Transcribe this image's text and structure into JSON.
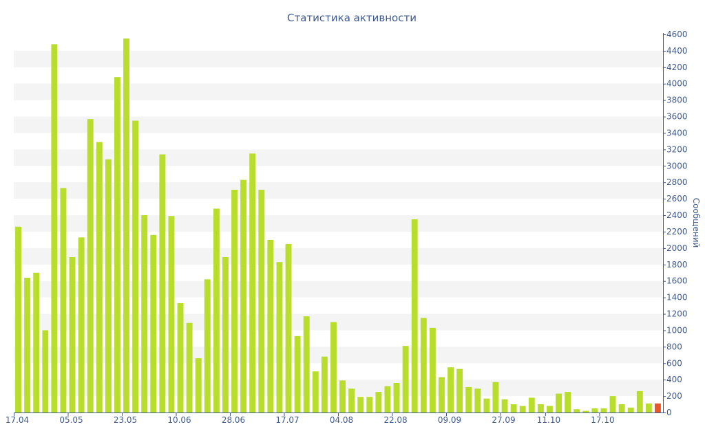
{
  "chart_data": {
    "type": "bar",
    "title": "Статистика активности",
    "xlabel": "",
    "ylabel": "Сообщений",
    "ylim": [
      0,
      4600
    ],
    "yticks": [
      0,
      200,
      400,
      600,
      800,
      1000,
      1200,
      1400,
      1600,
      1800,
      2000,
      2200,
      2400,
      2600,
      2800,
      3000,
      3200,
      3400,
      3600,
      3800,
      4000,
      4200,
      4400,
      4600
    ],
    "x_tick_labels": [
      {
        "label": "17.04",
        "index": 0
      },
      {
        "label": "05.05",
        "index": 6
      },
      {
        "label": "23.05",
        "index": 12
      },
      {
        "label": "10.06",
        "index": 18
      },
      {
        "label": "28.06",
        "index": 24
      },
      {
        "label": "17.07",
        "index": 30
      },
      {
        "label": "04.08",
        "index": 36
      },
      {
        "label": "22.08",
        "index": 42
      },
      {
        "label": "09.09",
        "index": 48
      },
      {
        "label": "27.09",
        "index": 54
      },
      {
        "label": "11.10",
        "index": 59
      },
      {
        "label": "17.10",
        "index": 65
      }
    ],
    "grid": true,
    "colors": {
      "bar": "#b9dd2c",
      "highlight": "#e8552b",
      "band": "#f4f4f4",
      "text": "#3e5a8c",
      "axis": "#3e5a8c"
    },
    "highlight_last": true,
    "values": [
      2260,
      1640,
      1700,
      1000,
      4480,
      2730,
      1890,
      2130,
      3570,
      3290,
      3080,
      4080,
      4550,
      3550,
      2400,
      2160,
      3140,
      2390,
      1330,
      1090,
      660,
      1620,
      2480,
      1890,
      2710,
      2830,
      3150,
      2710,
      2100,
      1830,
      2050,
      930,
      1170,
      500,
      680,
      1100,
      390,
      290,
      190,
      190,
      250,
      320,
      360,
      810,
      2350,
      1150,
      1030,
      430,
      550,
      530,
      310,
      290,
      170,
      370,
      160,
      100,
      80,
      180,
      100,
      80,
      230,
      250,
      40,
      20,
      50,
      50,
      200,
      100,
      60,
      260,
      110,
      110
    ]
  }
}
